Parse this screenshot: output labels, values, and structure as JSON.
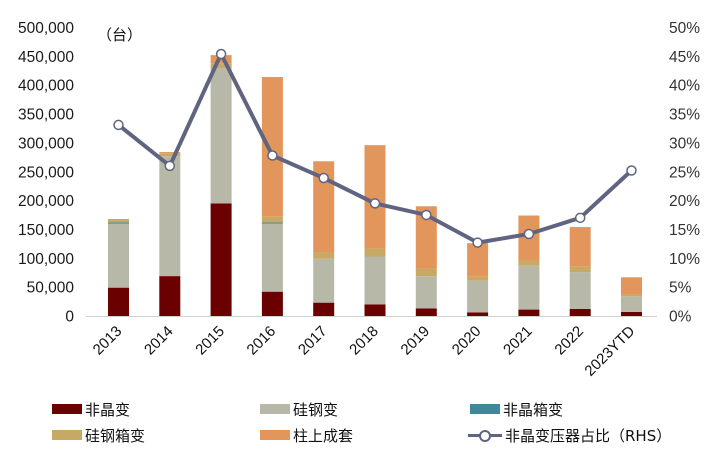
{
  "chart_data": {
    "type": "bar",
    "stacked": true,
    "title": "",
    "unit_label": "（台）",
    "xlabel": "",
    "ylabel": "",
    "ylabel_right": "",
    "categories": [
      "2013",
      "2014",
      "2015",
      "2016",
      "2017",
      "2018",
      "2019",
      "2020",
      "2021",
      "2022",
      "2023YTD"
    ],
    "ylim": [
      0,
      500000
    ],
    "y_ticks": [
      "0",
      "50,000",
      "100,000",
      "150,000",
      "200,000",
      "250,000",
      "300,000",
      "350,000",
      "400,000",
      "450,000",
      "500,000"
    ],
    "y2lim": [
      0,
      50
    ],
    "y2_ticks": [
      "0%",
      "5%",
      "10%",
      "15%",
      "20%",
      "25%",
      "30%",
      "35%",
      "40%",
      "45%",
      "50%"
    ],
    "grid": false,
    "legend_position": "bottom",
    "series": [
      {
        "name": "非晶变",
        "type": "bar",
        "axis": "left",
        "color": "#6B0000",
        "values": [
          50000,
          70000,
          196000,
          43000,
          24000,
          21000,
          14000,
          7000,
          12000,
          13000,
          8000
        ]
      },
      {
        "name": "硅钢变",
        "type": "bar",
        "axis": "left",
        "color": "#B8B8A8",
        "values": [
          111000,
          208000,
          234000,
          118000,
          76000,
          83000,
          56000,
          55000,
          76000,
          64000,
          27000
        ]
      },
      {
        "name": "非晶箱变",
        "type": "bar",
        "axis": "left",
        "color": "#3E8A9A",
        "values": [
          2000,
          0,
          0,
          2000,
          0,
          0,
          0,
          0,
          0,
          0,
          0
        ]
      },
      {
        "name": "硅钢箱变",
        "type": "bar",
        "axis": "left",
        "color": "#C8A865",
        "values": [
          6000,
          5000,
          9000,
          10000,
          11000,
          14000,
          13000,
          7000,
          10000,
          10000,
          3000
        ]
      },
      {
        "name": "柱上成套",
        "type": "bar",
        "axis": "left",
        "color": "#E2965C",
        "values": [
          0,
          2000,
          14000,
          242000,
          158000,
          179000,
          108000,
          58000,
          77000,
          68000,
          30000
        ]
      },
      {
        "name": "非晶变压器占比（RHS）",
        "type": "line",
        "axis": "right",
        "color": "#5F6480",
        "values": [
          33.2,
          26.1,
          45.5,
          27.9,
          24.0,
          19.6,
          17.6,
          12.8,
          14.3,
          17.1,
          25.3
        ]
      }
    ]
  },
  "legend": {
    "items": [
      {
        "label": "非晶变",
        "color": "#6B0000",
        "kind": "bar"
      },
      {
        "label": "硅钢变",
        "color": "#B8B8A8",
        "kind": "bar"
      },
      {
        "label": "非晶箱变",
        "color": "#3E8A9A",
        "kind": "bar"
      },
      {
        "label": "硅钢箱变",
        "color": "#C8A865",
        "kind": "bar"
      },
      {
        "label": "柱上成套",
        "color": "#E2965C",
        "kind": "bar"
      },
      {
        "label": "非晶变压器占比（RHS）",
        "color": "#5F6480",
        "kind": "line"
      }
    ]
  }
}
